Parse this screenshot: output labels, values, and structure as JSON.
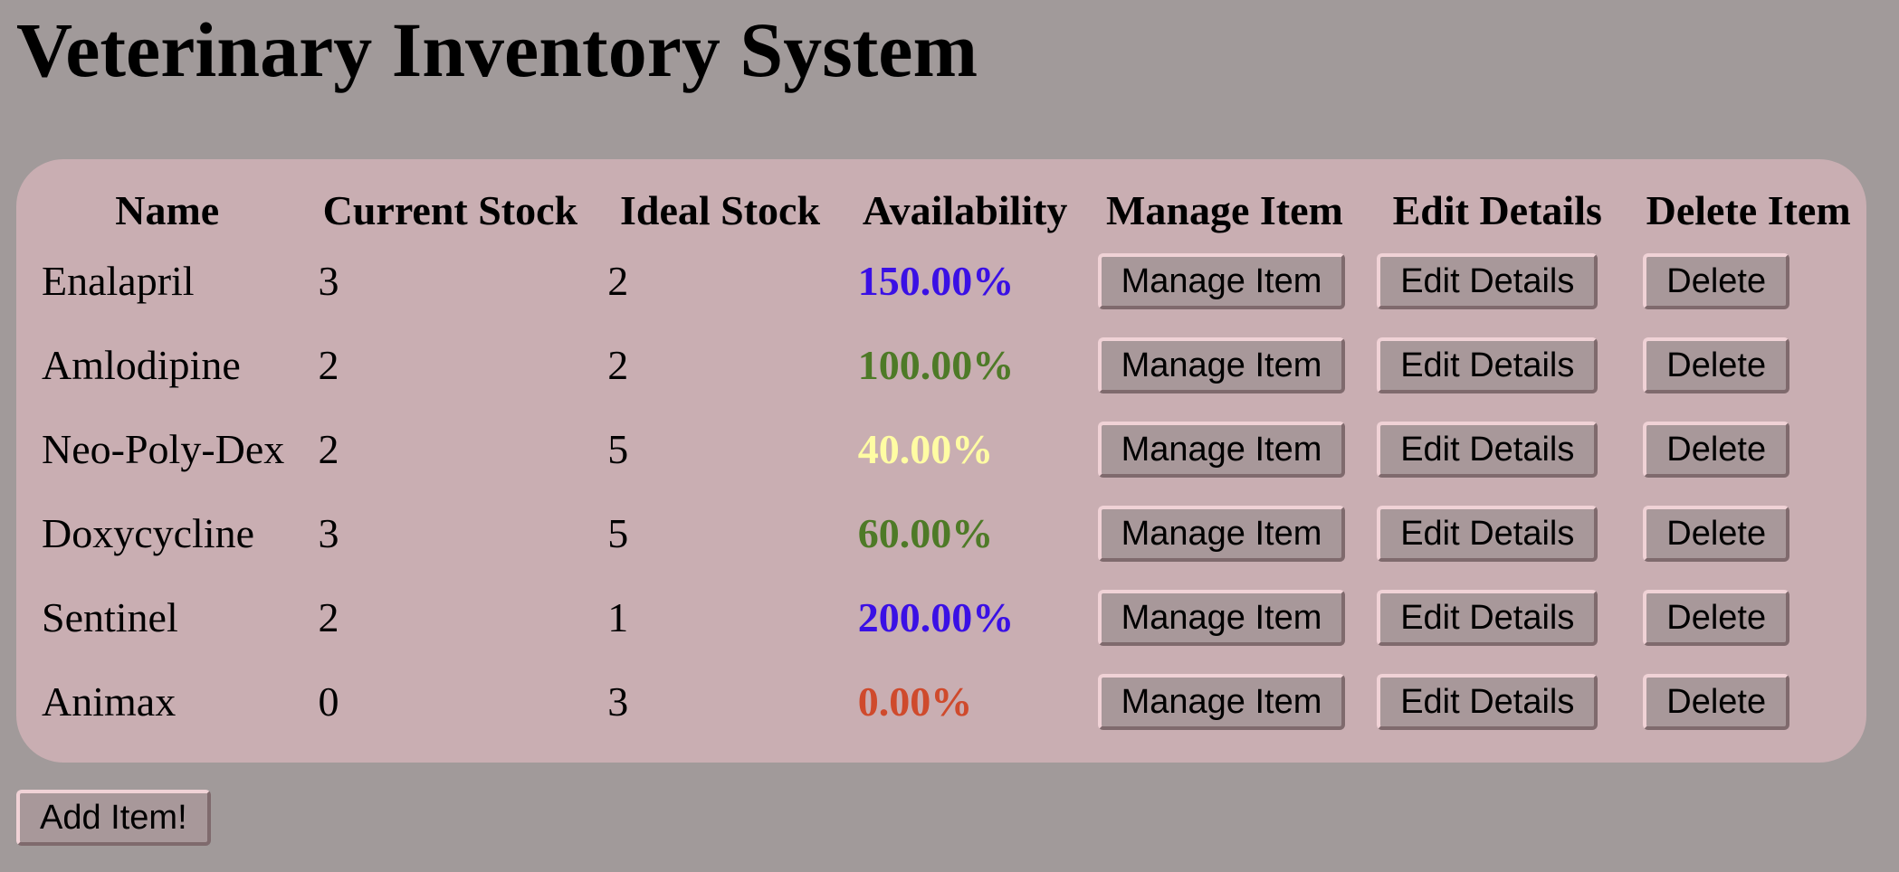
{
  "page": {
    "title": "Veterinary Inventory System"
  },
  "table": {
    "headers": {
      "name": "Name",
      "current_stock": "Current Stock",
      "ideal_stock": "Ideal Stock",
      "availability": "Availability",
      "manage": "Manage Item",
      "edit": "Edit Details",
      "delete": "Delete Item"
    },
    "button_labels": {
      "manage": "Manage Item",
      "edit": "Edit Details",
      "delete": "Delete"
    },
    "rows": [
      {
        "name": "Enalapril",
        "current": "3",
        "ideal": "2",
        "availability": "150.00%",
        "availability_color": "#3a10e5"
      },
      {
        "name": "Amlodipine",
        "current": "2",
        "ideal": "2",
        "availability": "100.00%",
        "availability_color": "#4e7a27"
      },
      {
        "name": "Neo-Poly-Dex",
        "current": "2",
        "ideal": "5",
        "availability": "40.00%",
        "availability_color": "#fffca3"
      },
      {
        "name": "Doxycycline",
        "current": "3",
        "ideal": "5",
        "availability": "60.00%",
        "availability_color": "#4e7a27"
      },
      {
        "name": "Sentinel",
        "current": "2",
        "ideal": "1",
        "availability": "200.00%",
        "availability_color": "#3a10e5"
      },
      {
        "name": "Animax",
        "current": "0",
        "ideal": "3",
        "availability": "0.00%",
        "availability_color": "#cf4a2c"
      }
    ]
  },
  "footer": {
    "add_button_label": "Add Item!"
  },
  "colors": {
    "page_background": "#a19a9a",
    "panel_background": "#c9aeb2",
    "button_background": "#a8989a",
    "button_highlight": "#f0d2d6"
  }
}
